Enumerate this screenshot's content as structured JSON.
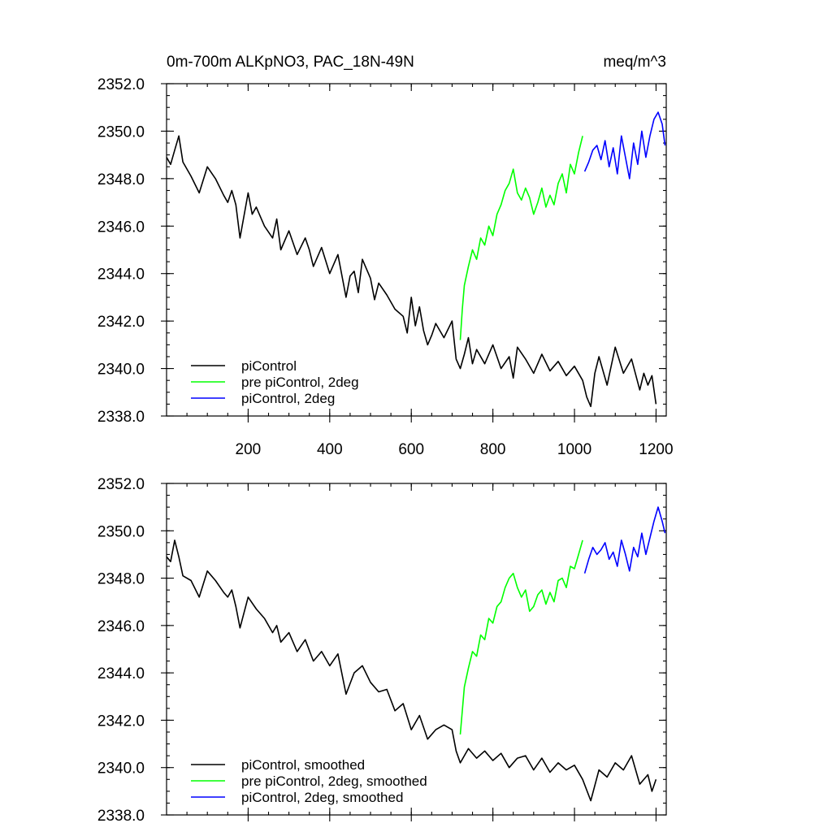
{
  "figure": {
    "title_left": "0m-700m ALKpNO3, PAC_18N-49N",
    "title_right": "meq/m^3"
  },
  "chart_data": [
    {
      "type": "line",
      "panel": "top",
      "xlim": [
        0,
        1225
      ],
      "ylim": [
        2338.0,
        2352.0
      ],
      "x_ticks": [
        200,
        400,
        600,
        800,
        1000,
        1200
      ],
      "x_tick_labels": [
        "200",
        "400",
        "600",
        "800",
        "1000",
        "1200"
      ],
      "y_ticks": [
        2338.0,
        2340.0,
        2342.0,
        2344.0,
        2346.0,
        2348.0,
        2350.0,
        2352.0
      ],
      "y_tick_labels": [
        "2338.0",
        "2340.0",
        "2342.0",
        "2344.0",
        "2346.0",
        "2348.0",
        "2350.0",
        "2352.0"
      ],
      "legend_position": "bottom-left",
      "series": [
        {
          "name": "piControl",
          "color": "#000000",
          "x": [
            0,
            10,
            20,
            30,
            40,
            60,
            80,
            100,
            120,
            140,
            150,
            160,
            170,
            180,
            200,
            210,
            220,
            240,
            260,
            270,
            280,
            300,
            320,
            340,
            350,
            360,
            380,
            400,
            420,
            440,
            450,
            460,
            470,
            480,
            500,
            510,
            520,
            540,
            560,
            580,
            590,
            600,
            610,
            620,
            630,
            640,
            650,
            660,
            680,
            700,
            710,
            720,
            730,
            740,
            750,
            760,
            780,
            800,
            820,
            840,
            850,
            860,
            880,
            900,
            920,
            940,
            960,
            980,
            1000,
            1020,
            1030,
            1040,
            1050,
            1060,
            1080,
            1100,
            1120,
            1140,
            1160,
            1170,
            1180,
            1190,
            1200
          ],
          "y": [
            2348.9,
            2348.6,
            2349.2,
            2349.8,
            2348.7,
            2348.1,
            2347.4,
            2348.5,
            2348.0,
            2347.3,
            2347.0,
            2347.5,
            2346.9,
            2345.5,
            2347.4,
            2346.5,
            2346.8,
            2346.0,
            2345.5,
            2346.3,
            2345.0,
            2345.8,
            2344.8,
            2345.5,
            2345.0,
            2344.3,
            2345.1,
            2344.0,
            2344.8,
            2343.0,
            2343.9,
            2344.1,
            2343.2,
            2344.6,
            2343.8,
            2342.9,
            2343.6,
            2343.1,
            2342.5,
            2342.2,
            2341.5,
            2343.0,
            2341.8,
            2342.6,
            2341.6,
            2341.0,
            2341.4,
            2341.9,
            2341.3,
            2342.0,
            2340.4,
            2340.0,
            2340.6,
            2341.3,
            2340.2,
            2340.8,
            2340.2,
            2341.0,
            2340.0,
            2340.5,
            2339.6,
            2340.9,
            2340.4,
            2339.8,
            2340.6,
            2339.9,
            2340.3,
            2339.7,
            2340.1,
            2339.5,
            2338.8,
            2338.4,
            2339.8,
            2340.5,
            2339.3,
            2340.9,
            2339.8,
            2340.4,
            2339.1,
            2339.8,
            2339.3,
            2339.7,
            2338.5
          ]
        },
        {
          "name": "pre piControl, 2deg",
          "color": "#00ff00",
          "x": [
            720,
            725,
            730,
            740,
            750,
            760,
            770,
            780,
            790,
            800,
            810,
            820,
            830,
            840,
            850,
            860,
            870,
            880,
            890,
            900,
            910,
            920,
            930,
            940,
            950,
            960,
            970,
            980,
            990,
            1000,
            1010,
            1020
          ],
          "y": [
            2341.2,
            2342.5,
            2343.5,
            2344.3,
            2345.0,
            2344.6,
            2345.5,
            2345.2,
            2346.0,
            2345.6,
            2346.5,
            2346.9,
            2347.5,
            2347.8,
            2348.4,
            2347.4,
            2347.1,
            2347.6,
            2347.2,
            2346.5,
            2347.0,
            2347.6,
            2346.8,
            2347.3,
            2346.9,
            2347.8,
            2348.2,
            2347.4,
            2348.6,
            2348.2,
            2349.1,
            2349.8
          ]
        },
        {
          "name": "piControl, 2deg",
          "color": "#0000ff",
          "x": [
            1025,
            1035,
            1045,
            1055,
            1065,
            1075,
            1085,
            1095,
            1105,
            1115,
            1125,
            1135,
            1145,
            1155,
            1165,
            1175,
            1185,
            1195,
            1205,
            1215,
            1222
          ],
          "y": [
            2348.3,
            2348.7,
            2349.2,
            2349.4,
            2348.8,
            2349.6,
            2348.5,
            2349.3,
            2348.2,
            2349.8,
            2348.9,
            2348.0,
            2349.5,
            2348.6,
            2350.0,
            2348.9,
            2349.8,
            2350.5,
            2350.8,
            2350.3,
            2349.4
          ]
        }
      ]
    },
    {
      "type": "line",
      "panel": "bottom",
      "xlim": [
        0,
        1225
      ],
      "ylim": [
        2338.0,
        2352.0
      ],
      "x_ticks": [
        200,
        400,
        600,
        800,
        1000,
        1200
      ],
      "y_ticks": [
        2338.0,
        2340.0,
        2342.0,
        2344.0,
        2346.0,
        2348.0,
        2350.0,
        2352.0
      ],
      "y_tick_labels": [
        "2338.0",
        "2340.0",
        "2342.0",
        "2344.0",
        "2346.0",
        "2348.0",
        "2350.0",
        "2352.0"
      ],
      "legend_position": "bottom-left",
      "series": [
        {
          "name": "piControl, smoothed",
          "color": "#000000",
          "x": [
            0,
            10,
            20,
            30,
            40,
            60,
            80,
            100,
            120,
            140,
            150,
            160,
            170,
            180,
            200,
            220,
            240,
            260,
            270,
            280,
            300,
            320,
            340,
            360,
            380,
            400,
            420,
            440,
            460,
            480,
            500,
            520,
            540,
            560,
            580,
            600,
            620,
            640,
            660,
            680,
            700,
            710,
            720,
            740,
            760,
            780,
            800,
            820,
            840,
            860,
            880,
            900,
            920,
            940,
            960,
            980,
            1000,
            1020,
            1040,
            1060,
            1080,
            1100,
            1120,
            1140,
            1160,
            1180,
            1190,
            1200
          ],
          "y": [
            2348.9,
            2348.7,
            2349.6,
            2348.9,
            2348.1,
            2347.9,
            2347.2,
            2348.3,
            2347.9,
            2347.4,
            2347.2,
            2347.5,
            2346.8,
            2345.9,
            2347.2,
            2346.7,
            2346.3,
            2345.7,
            2346.0,
            2345.3,
            2345.7,
            2344.9,
            2345.4,
            2344.5,
            2344.9,
            2344.3,
            2344.8,
            2343.1,
            2344.0,
            2344.3,
            2343.6,
            2343.2,
            2343.3,
            2342.4,
            2342.7,
            2341.6,
            2342.2,
            2341.2,
            2341.6,
            2341.8,
            2341.6,
            2340.7,
            2340.2,
            2340.8,
            2340.4,
            2340.7,
            2340.3,
            2340.6,
            2340.0,
            2340.4,
            2340.5,
            2339.9,
            2340.4,
            2339.8,
            2340.2,
            2339.9,
            2340.1,
            2339.5,
            2338.6,
            2339.9,
            2339.6,
            2340.2,
            2339.9,
            2340.5,
            2339.3,
            2339.7,
            2339.0,
            2339.5
          ]
        },
        {
          "name": "pre piControl, 2deg, smoothed",
          "color": "#00ff00",
          "x": [
            720,
            730,
            740,
            750,
            760,
            770,
            780,
            790,
            800,
            810,
            820,
            830,
            840,
            850,
            860,
            870,
            880,
            890,
            900,
            910,
            920,
            930,
            940,
            950,
            960,
            970,
            980,
            990,
            1000,
            1010,
            1020
          ],
          "y": [
            2341.4,
            2343.4,
            2344.2,
            2344.9,
            2344.7,
            2345.6,
            2345.4,
            2346.3,
            2346.1,
            2346.8,
            2347.0,
            2347.6,
            2348.0,
            2348.2,
            2347.6,
            2347.2,
            2347.5,
            2346.6,
            2346.8,
            2347.3,
            2347.5,
            2346.9,
            2347.4,
            2347.0,
            2347.9,
            2348.0,
            2347.6,
            2348.5,
            2348.4,
            2349.0,
            2349.6
          ]
        },
        {
          "name": "piControl, 2deg, smoothed",
          "color": "#0000ff",
          "x": [
            1025,
            1035,
            1045,
            1055,
            1065,
            1075,
            1085,
            1095,
            1105,
            1115,
            1125,
            1135,
            1145,
            1155,
            1165,
            1175,
            1185,
            1195,
            1205,
            1215,
            1222
          ],
          "y": [
            2348.2,
            2348.8,
            2349.3,
            2349.0,
            2349.2,
            2349.5,
            2348.8,
            2349.1,
            2348.5,
            2349.6,
            2349.0,
            2348.3,
            2349.3,
            2348.9,
            2349.9,
            2349.0,
            2349.7,
            2350.4,
            2351.0,
            2350.4,
            2349.9
          ]
        }
      ]
    }
  ]
}
